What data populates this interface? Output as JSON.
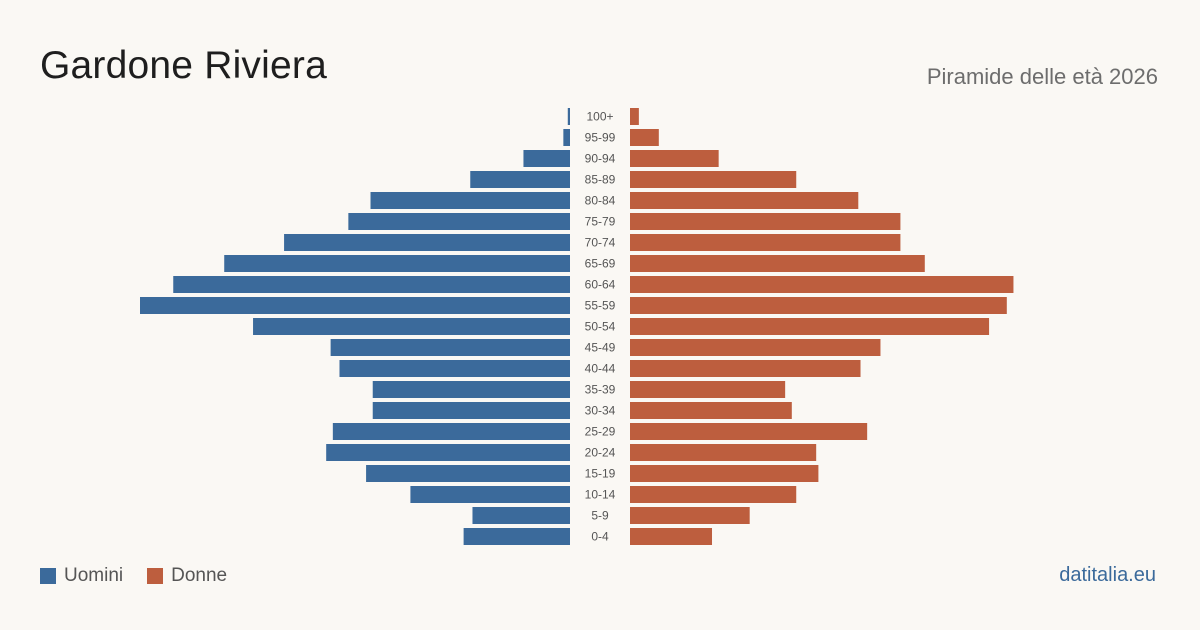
{
  "header": {
    "title": "Gardone Riviera",
    "subtitle": "Piramide delle età 2026"
  },
  "legend": {
    "men_label": "Uomini",
    "women_label": "Donne"
  },
  "brand": "datitalia.eu",
  "colors": {
    "men": "#3b6a9b",
    "women": "#bd5e3e",
    "label": "#555555"
  },
  "chart_data": {
    "type": "bar",
    "title": "Gardone Riviera",
    "subtitle": "Piramide delle età 2026",
    "orientation": "horizontal-pyramid",
    "categories": [
      "100+",
      "95-99",
      "90-94",
      "85-89",
      "80-84",
      "75-79",
      "70-74",
      "65-69",
      "60-64",
      "55-59",
      "50-54",
      "45-49",
      "40-44",
      "35-39",
      "30-34",
      "25-29",
      "20-24",
      "15-19",
      "10-14",
      "5-9",
      "0-4"
    ],
    "series": [
      {
        "name": "Uomini",
        "values": [
          1,
          3,
          21,
          45,
          90,
          100,
          129,
          156,
          179,
          194,
          143,
          108,
          104,
          89,
          89,
          107,
          110,
          92,
          72,
          44,
          48
        ]
      },
      {
        "name": "Donne",
        "values": [
          4,
          13,
          40,
          75,
          103,
          122,
          122,
          133,
          173,
          170,
          162,
          113,
          104,
          70,
          73,
          107,
          84,
          85,
          75,
          54,
          37
        ]
      }
    ],
    "legend_position": "bottom-left",
    "grid": false
  }
}
